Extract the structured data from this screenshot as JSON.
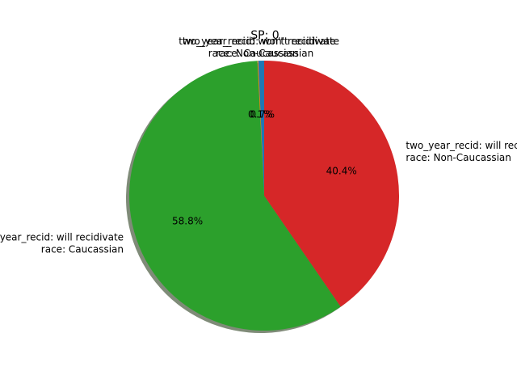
{
  "chart_data": {
    "type": "pie",
    "title": "SP: 0",
    "slices": [
      {
        "label_lines": [
          "two_year_recid: won't recidivate",
          "race: Non-Caucassian"
        ],
        "value": 0.7,
        "pct_text": "0.7%",
        "color": "#1f77b4"
      },
      {
        "label_lines": [
          "two_year_recid: won't recidivate",
          "race: Caucassian"
        ],
        "value": 0.1,
        "pct_text": "0.1%",
        "color": "#ff7f0e"
      },
      {
        "label_lines": [
          "two_year_recid: will recidivate",
          "race: Caucassian"
        ],
        "value": 58.8,
        "pct_text": "58.8%",
        "color": "#2ca02c"
      },
      {
        "label_lines": [
          "two_year_recid: will recidivate",
          "race: Non-Caucassian"
        ],
        "value": 40.4,
        "pct_text": "40.4%",
        "color": "#d62728"
      }
    ],
    "start_angle_deg": 90,
    "counterclockwise": true,
    "shadow": true
  }
}
